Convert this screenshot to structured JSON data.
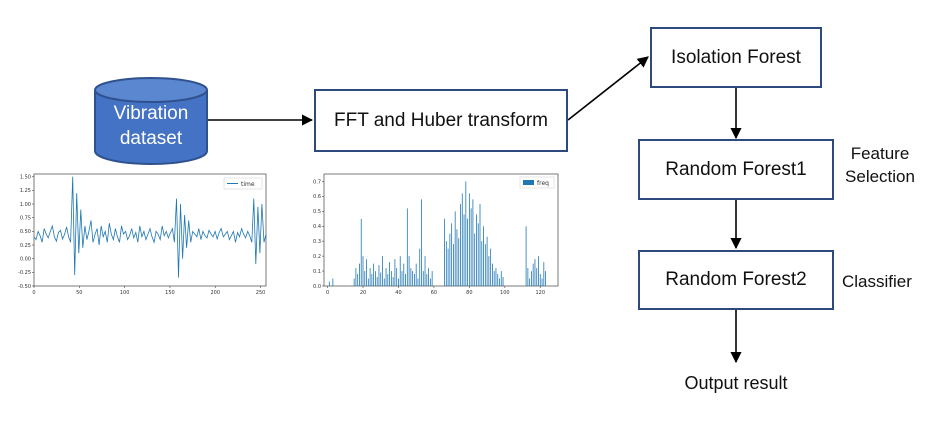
{
  "nodes": {
    "dataset_line1": "Vibration",
    "dataset_line2": "dataset",
    "fft": "FFT and Huber transform",
    "isolation": "Isolation Forest",
    "rf1": "Random Forest1",
    "rf2": "Random Forest2",
    "output": "Output result"
  },
  "annotations": {
    "feature_line1": "Feature",
    "feature_line2": "Selection",
    "classifier": "Classifier"
  },
  "colors": {
    "cylinder": "#4472c4",
    "box_border": "#2c4a7c",
    "series": "#1f77b4"
  },
  "chart_data": [
    {
      "type": "line",
      "legend": [
        "time"
      ],
      "x_ticks": [
        "0",
        "50",
        "100",
        "150",
        "200",
        "250"
      ],
      "y_ticks": [
        "-0.50",
        "-0.25",
        "0.00",
        "0.25",
        "0.50",
        "0.75",
        "1.00",
        "1.25",
        "1.50"
      ],
      "xlim": [
        0,
        256
      ],
      "ylim": [
        -0.5,
        1.55
      ],
      "series": [
        {
          "values": [
            0.4,
            0.35,
            0.5,
            0.42,
            0.3,
            0.55,
            0.45,
            0.38,
            0.5,
            0.6,
            0.4,
            0.32,
            0.48,
            0.52,
            0.36,
            0.44,
            0.58,
            0.4,
            0.3,
            1.5,
            -0.3,
            1.2,
            0.1,
            0.9,
            0.2,
            0.6,
            0.35,
            0.5,
            0.7,
            0.3,
            0.45,
            0.55,
            0.25,
            0.6,
            0.4,
            0.5,
            0.3,
            0.65,
            0.45,
            0.35,
            0.55,
            0.4,
            0.3,
            0.6,
            0.45,
            0.5,
            0.35,
            0.42,
            0.55,
            0.38,
            0.48,
            0.3,
            0.6,
            0.4,
            0.5,
            0.35,
            0.45,
            0.55,
            0.4,
            0.3,
            0.5,
            0.45,
            0.35,
            0.6,
            0.42,
            0.5,
            0.38,
            0.47,
            0.55,
            0.3,
            1.1,
            -0.35,
            1.0,
            0.0,
            0.8,
            0.2,
            0.7,
            0.3,
            0.5,
            0.45,
            0.4,
            0.55,
            0.35,
            0.5,
            0.42,
            0.38,
            0.52,
            0.45,
            0.4,
            0.5,
            0.36,
            0.48,
            0.55,
            0.4,
            0.45,
            0.5,
            0.35,
            0.42,
            0.5,
            0.3,
            0.48,
            0.4,
            0.55,
            0.45,
            0.38,
            0.5,
            0.42,
            0.3,
            1.1,
            -0.1,
            0.95,
            0.1,
            1.0,
            0.3,
            0.45
          ]
        }
      ]
    },
    {
      "type": "bar",
      "legend": [
        "freq"
      ],
      "x_ticks": [
        "0",
        "20",
        "40",
        "60",
        "80",
        "100",
        "120"
      ],
      "y_ticks": [
        "0.0",
        "0.1",
        "0.2",
        "0.3",
        "0.4",
        "0.5",
        "0.6",
        "0.7"
      ],
      "xlim": [
        -2,
        130
      ],
      "ylim": [
        0,
        0.75
      ],
      "values": [
        0.0,
        0.03,
        0.0,
        0.05,
        0.0,
        0.0,
        0.0,
        0.0,
        0.0,
        0.0,
        0.0,
        0.0,
        0.0,
        0.0,
        0.0,
        0.05,
        0.12,
        0.08,
        0.15,
        0.45,
        0.2,
        0.1,
        0.18,
        0.05,
        0.12,
        0.08,
        0.15,
        0.1,
        0.06,
        0.14,
        0.09,
        0.2,
        0.05,
        0.12,
        0.08,
        0.16,
        0.1,
        0.06,
        0.18,
        0.12,
        0.05,
        0.2,
        0.1,
        0.15,
        0.08,
        0.52,
        0.2,
        0.12,
        0.1,
        0.08,
        0.15,
        0.05,
        0.25,
        0.58,
        0.1,
        0.2,
        0.08,
        0.12,
        0.05,
        0.1,
        0.0,
        0.0,
        0.0,
        0.0,
        0.0,
        0.0,
        0.45,
        0.3,
        0.25,
        0.35,
        0.42,
        0.28,
        0.5,
        0.38,
        0.32,
        0.55,
        0.62,
        0.48,
        0.7,
        0.45,
        0.62,
        0.52,
        0.58,
        0.35,
        0.48,
        0.42,
        0.55,
        0.3,
        0.4,
        0.28,
        0.33,
        0.2,
        0.25,
        0.15,
        0.1,
        0.12,
        0.08,
        0.05,
        0.1,
        0.06,
        0.0,
        0.0,
        0.0,
        0.0,
        0.0,
        0.0,
        0.0,
        0.0,
        0.0,
        0.0,
        0.0,
        0.0,
        0.4,
        0.12,
        0.05,
        0.1,
        0.15,
        0.18,
        0.12,
        0.2,
        0.08,
        0.05,
        0.16,
        0.1
      ]
    }
  ]
}
